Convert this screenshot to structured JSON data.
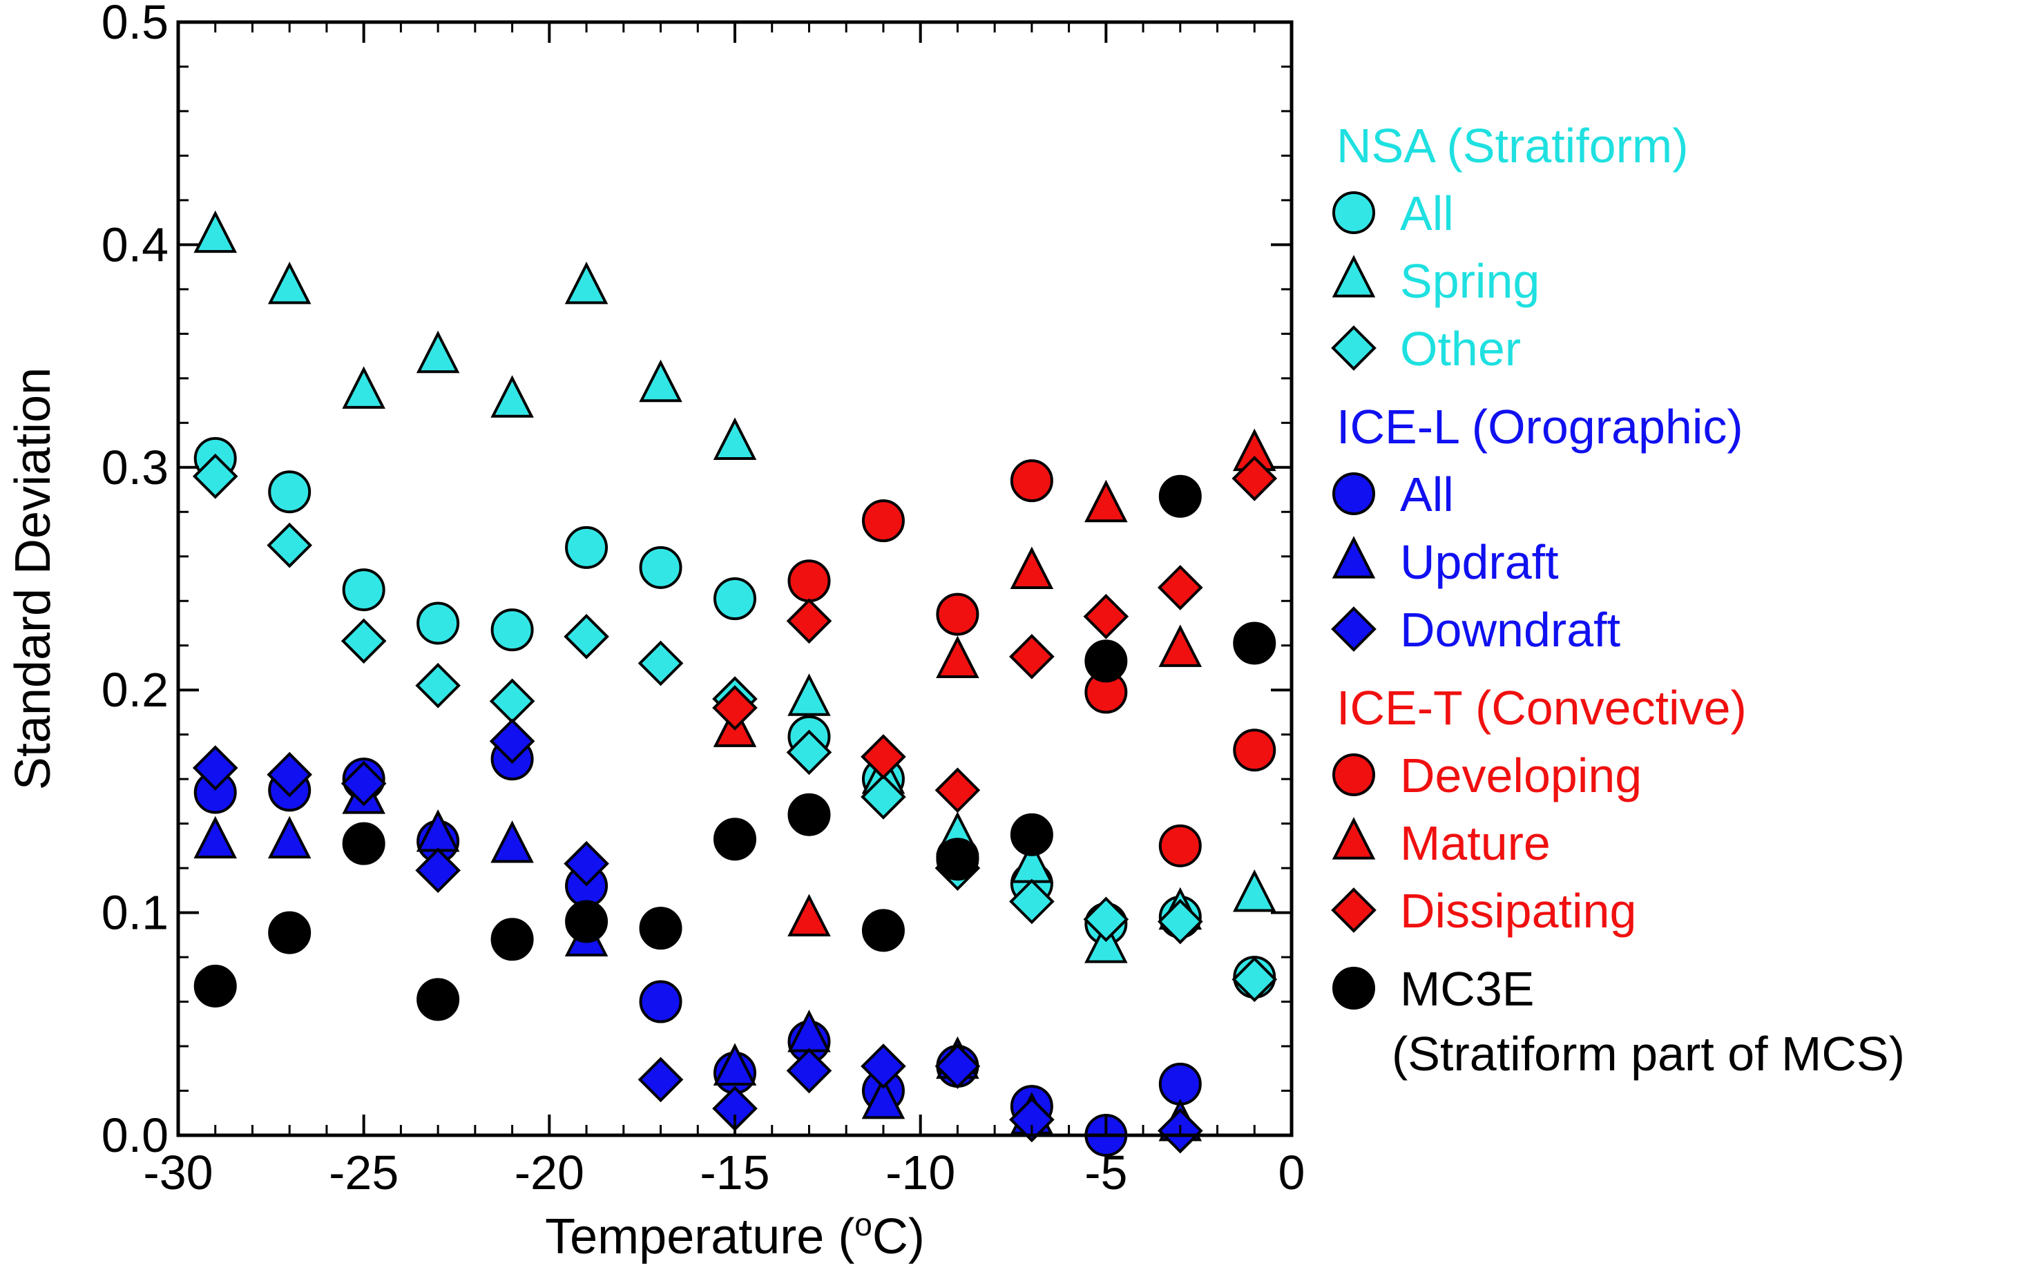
{
  "chart_data": {
    "type": "scatter",
    "title": "",
    "xlabel": "Temperature (",
    "xlabel_sup": "o",
    "xlabel_suffix": "C)",
    "ylabel": "Standard Deviation",
    "xlim": [
      -30,
      0
    ],
    "ylim": [
      0.0,
      0.5
    ],
    "x_ticks": [
      -30,
      -25,
      -20,
      -15,
      -10,
      -5,
      0
    ],
    "x_tick_labels": [
      "-30",
      "-25",
      "-20",
      "-15",
      "-10",
      "-5",
      "0"
    ],
    "y_ticks": [
      0.0,
      0.1,
      0.2,
      0.3,
      0.4,
      0.5
    ],
    "y_tick_labels": [
      "0.0",
      "0.1",
      "0.2",
      "0.3",
      "0.4",
      "0.5"
    ],
    "grid": false,
    "legend_position": "right",
    "colors": {
      "cyan": "#33e6e6",
      "blue": "#1010f0",
      "red": "#f01010",
      "black": "#000000"
    },
    "legend_groups": [
      {
        "title": "NSA (Stratiform)",
        "color": "#1fe0e0",
        "entries": [
          {
            "label": "All",
            "marker": "circle",
            "fill": "#33e6e6"
          },
          {
            "label": "Spring",
            "marker": "triangle",
            "fill": "#33e6e6"
          },
          {
            "label": "Other",
            "marker": "diamond",
            "fill": "#33e6e6"
          }
        ]
      },
      {
        "title": "ICE-L (Orographic)",
        "color": "#1010f0",
        "entries": [
          {
            "label": "All",
            "marker": "circle",
            "fill": "#1010f0"
          },
          {
            "label": "Updraft",
            "marker": "triangle",
            "fill": "#1010f0"
          },
          {
            "label": "Downdraft",
            "marker": "diamond",
            "fill": "#1010f0"
          }
        ]
      },
      {
        "title": "ICE-T (Convective)",
        "color": "#f01010",
        "entries": [
          {
            "label": "Developing",
            "marker": "circle",
            "fill": "#f01010"
          },
          {
            "label": "Mature",
            "marker": "triangle",
            "fill": "#f01010"
          },
          {
            "label": "Dissipating",
            "marker": "diamond",
            "fill": "#f01010"
          }
        ]
      },
      {
        "title": "",
        "color": "#000000",
        "entries": [
          {
            "label": "MC3E",
            "label2": "(Stratiform part of MCS)",
            "marker": "circle",
            "fill": "#000000"
          }
        ]
      }
    ],
    "series": [
      {
        "name": "NSA (Stratiform) All",
        "marker": "circle",
        "fill": "#33e6e6",
        "x": [
          -29,
          -27,
          -25,
          -23,
          -21,
          -19,
          -17,
          -15,
          -13,
          -11,
          -9,
          -7,
          -5,
          -3,
          -1
        ],
        "y": [
          0.304,
          0.289,
          0.245,
          0.23,
          0.227,
          0.264,
          0.255,
          0.241,
          0.179,
          0.16,
          0.125,
          0.113,
          0.095,
          0.098,
          0.071
        ]
      },
      {
        "name": "NSA (Stratiform) Spring",
        "marker": "triangle",
        "fill": "#33e6e6",
        "x": [
          -29,
          -27,
          -25,
          -23,
          -21,
          -19,
          -17,
          -15,
          -13,
          -11,
          -9,
          -7,
          -5,
          -3,
          -1
        ],
        "y": [
          0.404,
          0.381,
          0.334,
          0.35,
          0.33,
          0.381,
          0.337,
          0.311,
          0.196,
          0.161,
          0.134,
          0.121,
          0.085,
          0.1,
          0.108
        ]
      },
      {
        "name": "NSA (Stratiform) Other",
        "marker": "diamond",
        "fill": "#33e6e6",
        "x": [
          -29,
          -27,
          -25,
          -23,
          -21,
          -19,
          -17,
          -15,
          -13,
          -11,
          -9,
          -7,
          -5,
          -3,
          -1
        ],
        "y": [
          0.296,
          0.265,
          0.222,
          0.202,
          0.195,
          0.224,
          0.212,
          0.196,
          0.172,
          0.152,
          0.12,
          0.105,
          0.097,
          0.096,
          0.07
        ]
      },
      {
        "name": "ICE-L (Orographic) All",
        "marker": "circle",
        "fill": "#1010f0",
        "x": [
          -29,
          -27,
          -25,
          -23,
          -21,
          -19,
          -17,
          -15,
          -13,
          -11,
          -9,
          -7,
          -5,
          -3
        ],
        "y": [
          0.154,
          0.155,
          0.16,
          0.132,
          0.169,
          0.112,
          0.06,
          0.028,
          0.042,
          0.02,
          0.031,
          0.013,
          0.0,
          0.023
        ]
      },
      {
        "name": "ICE-L (Orographic) Updraft",
        "marker": "triangle",
        "fill": "#1010f0",
        "x": [
          -29,
          -27,
          -25,
          -23,
          -21,
          -19,
          -15,
          -13,
          -11,
          -9,
          -7,
          -3
        ],
        "y": [
          0.132,
          0.132,
          0.152,
          0.135,
          0.13,
          0.088,
          0.03,
          0.045,
          0.015,
          0.033,
          0.008,
          0.005
        ]
      },
      {
        "name": "ICE-L (Orographic) Downdraft",
        "marker": "diamond",
        "fill": "#1010f0",
        "x": [
          -29,
          -27,
          -25,
          -23,
          -21,
          -19,
          -17,
          -15,
          -13,
          -11,
          -9,
          -7,
          -3
        ],
        "y": [
          0.165,
          0.162,
          0.158,
          0.119,
          0.177,
          0.122,
          0.025,
          0.012,
          0.029,
          0.031,
          0.031,
          0.007,
          0.002
        ]
      },
      {
        "name": "ICE-T (Convective) Developing",
        "marker": "circle",
        "fill": "#f01010",
        "x": [
          -13,
          -11,
          -9,
          -7,
          -5,
          -3,
          -1
        ],
        "y": [
          0.249,
          0.276,
          0.234,
          0.294,
          0.199,
          0.13,
          0.173
        ]
      },
      {
        "name": "ICE-T (Convective) Mature",
        "marker": "triangle",
        "fill": "#f01010",
        "x": [
          -15,
          -13,
          -9,
          -7,
          -5,
          -3,
          -1
        ],
        "y": [
          0.182,
          0.097,
          0.213,
          0.253,
          0.283,
          0.218,
          0.306
        ]
      },
      {
        "name": "ICE-T (Convective) Dissipating",
        "marker": "diamond",
        "fill": "#f01010",
        "x": [
          -15,
          -13,
          -11,
          -9,
          -7,
          -5,
          -3,
          -1
        ],
        "y": [
          0.192,
          0.231,
          0.17,
          0.155,
          0.215,
          0.233,
          0.246,
          0.295
        ]
      },
      {
        "name": "MC3E (Stratiform part of MCS)",
        "marker": "circle",
        "fill": "#000000",
        "x": [
          -29,
          -27,
          -25,
          -23,
          -21,
          -19,
          -17,
          -15,
          -13,
          -11,
          -9,
          -7,
          -5,
          -3,
          -1
        ],
        "y": [
          0.067,
          0.091,
          0.131,
          0.061,
          0.088,
          0.096,
          0.093,
          0.133,
          0.144,
          0.092,
          0.124,
          0.135,
          0.213,
          0.287,
          0.221
        ]
      }
    ]
  }
}
